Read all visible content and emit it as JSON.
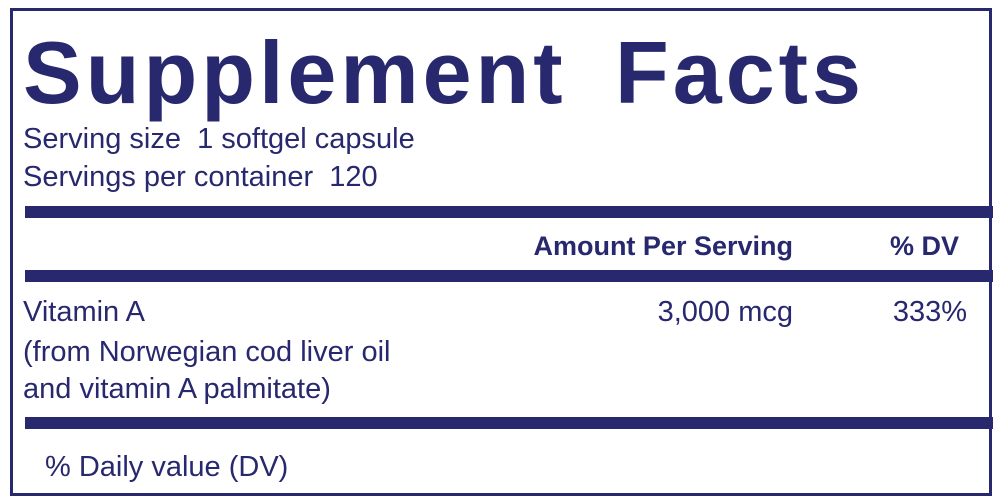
{
  "title": "Supplement Facts",
  "serving_size": "Serving size  1 softgel capsule",
  "servings_per_container": "Servings per container  120",
  "table": {
    "header": [
      "Amount Per Serving",
      "% DV"
    ],
    "rows": [
      [
        "Vitamin A",
        "3,000 mcg",
        "333%"
      ]
    ],
    "note_lines": [
      "(from Norwegian cod liver oil",
      "and vitamin A palmitate)"
    ]
  },
  "footnote": "% Daily value (DV)"
}
